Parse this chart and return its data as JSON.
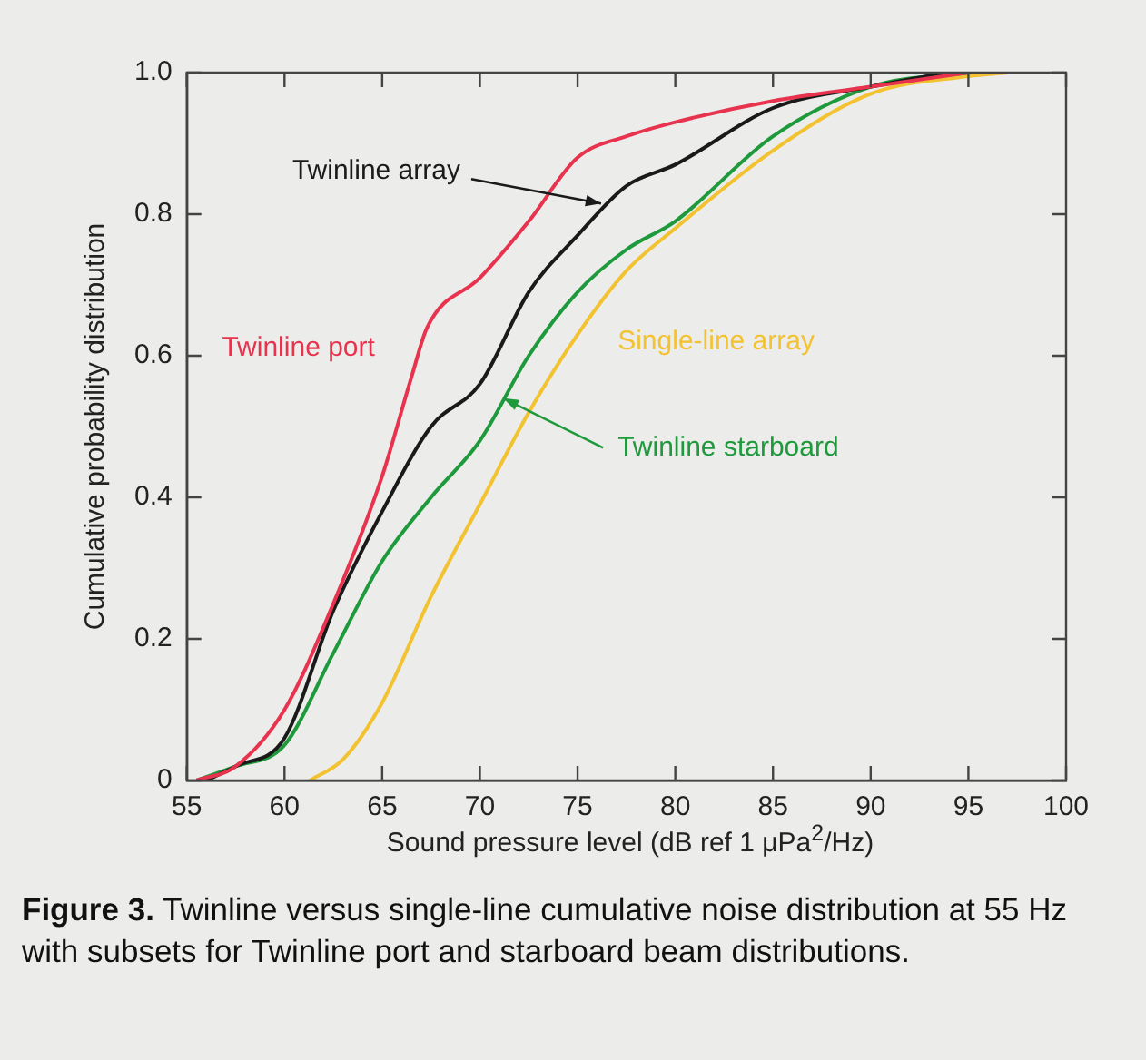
{
  "chart_data": {
    "type": "line",
    "xlabel": "Sound pressure level (dB ref 1 μPa$^{2}$/Hz)",
    "ylabel": "Cumulative probability distribution",
    "xlim": [
      55,
      100
    ],
    "xticks": [
      55,
      60,
      65,
      70,
      75,
      80,
      85,
      90,
      95,
      100
    ],
    "ylim": [
      0,
      1.0
    ],
    "yticks": [
      0,
      0.2,
      0.4,
      0.6,
      0.8,
      {
        "value": 1,
        "label": "1.0"
      }
    ],
    "grid": false,
    "legend": false,
    "marker": "none",
    "line_style": "solid",
    "series": [
      {
        "name": "Twinline port",
        "color": "#e8334f",
        "x": [
          55.5,
          57.5,
          60,
          62.5,
          65,
          66.5,
          67.3,
          70,
          72.5,
          75,
          77.5,
          80,
          85,
          90,
          95
        ],
        "values": [
          0,
          0.02,
          0.1,
          0.25,
          0.43,
          0.57,
          0.64,
          0.71,
          0.79,
          0.88,
          0.91,
          0.93,
          0.96,
          0.98,
          1.0
        ]
      },
      {
        "name": "Twinline array",
        "color": "#1a1a1a",
        "x": [
          56,
          57.5,
          60,
          62.5,
          65,
          67.5,
          70,
          72.5,
          75,
          77.5,
          80,
          85,
          90,
          95,
          96
        ],
        "values": [
          0,
          0.02,
          0.06,
          0.24,
          0.38,
          0.5,
          0.56,
          0.69,
          0.77,
          0.84,
          0.87,
          0.95,
          0.98,
          1.0,
          1.0
        ]
      },
      {
        "name": "Twinline starboard",
        "color": "#1e9a3c",
        "x": [
          55.5,
          57.5,
          60,
          62.5,
          65,
          67.5,
          70,
          72.5,
          75,
          77.5,
          80,
          85,
          90,
          95
        ],
        "values": [
          0,
          0.02,
          0.05,
          0.18,
          0.31,
          0.4,
          0.48,
          0.6,
          0.69,
          0.75,
          0.79,
          0.91,
          0.98,
          1.0
        ]
      },
      {
        "name": "Single-line array",
        "color": "#f2c230",
        "x": [
          61.3,
          63,
          65,
          67.5,
          70,
          72.5,
          75,
          77.5,
          80,
          85,
          90,
          95,
          97
        ],
        "values": [
          0,
          0.03,
          0.11,
          0.26,
          0.39,
          0.52,
          0.63,
          0.72,
          0.78,
          0.89,
          0.97,
          0.995,
          1.0
        ]
      }
    ],
    "annotations": [
      "Figure 3. Twinline versus single-line cumulative noise distribution at 55 Hz with subsets for Twinline port and starboard beam distributions."
    ]
  }
}
